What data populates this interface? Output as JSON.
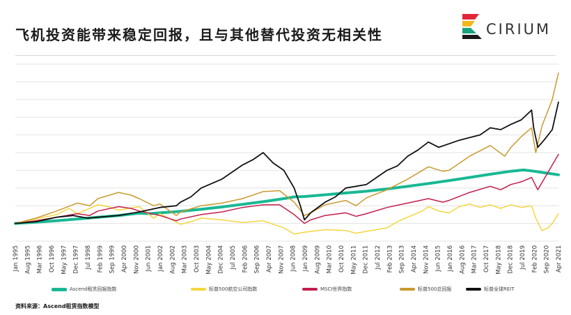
{
  "title": "飞机投资能带来稳定回报，且与其他替代投资无相关性",
  "logo": {
    "text": "CIRIUM",
    "colors": [
      "#e2263a",
      "#f3b61c",
      "#19a37e",
      "#1a1a1a"
    ]
  },
  "source": "资料来源：Ascend租赁指数模型",
  "chart_data": {
    "type": "line",
    "title": "",
    "xlabel": "",
    "ylabel": "",
    "grid": true,
    "legend_position": "bottom",
    "ylim": [
      0,
      10
    ],
    "xlim": [
      1995.0,
      2021.3
    ],
    "x_tick_labels": [
      "Jan 1995",
      "Aug 1995",
      "Mar 1996",
      "Oct 1996",
      "May 1997",
      "Dec 1997",
      "Jul 1998",
      "Feb 1999",
      "Sep 1999",
      "Apr 2000",
      "Nov 2000",
      "Jun 2001",
      "Jan 2002",
      "Aug 2002",
      "Mar 2003",
      "Oct 2003",
      "May 2004",
      "Dec 2004",
      "Jul 2005",
      "Feb 2006",
      "Sep 2006",
      "Apr 2007",
      "Nov 2007",
      "Jun 2008",
      "Jan 2009",
      "Aug 2009",
      "Mar 2010",
      "Oct 2010",
      "May 2011",
      "Dec 2011",
      "Jul 2012",
      "Feb 2013",
      "Sep 2013",
      "Apr 2014",
      "Nov 2014",
      "Jun 2015",
      "Jan 2016",
      "Aug 2016",
      "Mar 2017",
      "Oct 2017",
      "May 2018",
      "Dec 2018",
      "Jul 2019",
      "Feb 2020",
      "Sep 2020",
      "Apr 2021"
    ],
    "series": [
      {
        "name": "Ascend租赁回报指数",
        "color": "#19b894",
        "width": 4,
        "x": [
          1995.0,
          1996.0,
          1997.0,
          1998.0,
          1999.0,
          2000.0,
          2001.0,
          2001.5,
          2002.0,
          2003.0,
          2004.0,
          2005.0,
          2006.0,
          2007.0,
          2008.0,
          2008.5,
          2009.0,
          2010.0,
          2011.0,
          2012.0,
          2013.0,
          2014.0,
          2015.0,
          2016.0,
          2017.0,
          2018.0,
          2019.0,
          2019.6,
          2020.0,
          2020.5,
          2021.0,
          2021.3
        ],
        "y": [
          1.0,
          1.07,
          1.15,
          1.25,
          1.35,
          1.45,
          1.58,
          1.55,
          1.6,
          1.68,
          1.8,
          1.93,
          2.08,
          2.23,
          2.4,
          2.5,
          2.52,
          2.62,
          2.72,
          2.82,
          2.95,
          3.1,
          3.25,
          3.42,
          3.6,
          3.78,
          3.95,
          4.02,
          3.97,
          3.88,
          3.8,
          3.75
        ]
      },
      {
        "name": "标普500航空公司指数",
        "color": "#f5d63f",
        "width": 1.5,
        "x": [
          1995.0,
          1996.0,
          1997.0,
          1997.6,
          1998.0,
          1998.5,
          1999.0,
          1999.5,
          2000.0,
          2000.5,
          2001.0,
          2001.7,
          2002.0,
          2003.0,
          2003.5,
          2004.0,
          2005.0,
          2006.0,
          2007.0,
          2007.5,
          2008.0,
          2008.5,
          2009.0,
          2010.0,
          2011.0,
          2011.5,
          2012.0,
          2013.0,
          2013.5,
          2014.0,
          2014.7,
          2015.0,
          2015.5,
          2016.0,
          2016.5,
          2017.0,
          2017.5,
          2018.0,
          2018.5,
          2019.0,
          2019.5,
          2020.0,
          2020.2,
          2020.5,
          2020.8,
          2021.0,
          2021.3
        ],
        "y": [
          1.0,
          1.25,
          1.5,
          1.85,
          1.55,
          1.8,
          2.05,
          1.95,
          1.75,
          1.85,
          1.95,
          1.3,
          1.55,
          0.95,
          1.1,
          1.3,
          1.2,
          1.05,
          1.15,
          0.95,
          0.75,
          0.4,
          0.5,
          0.65,
          0.6,
          0.45,
          0.55,
          0.75,
          1.1,
          1.35,
          1.7,
          1.95,
          1.7,
          1.6,
          1.95,
          2.1,
          1.9,
          2.05,
          1.85,
          2.05,
          1.9,
          2.0,
          1.3,
          0.6,
          0.75,
          1.0,
          1.55
        ]
      },
      {
        "name": "MSCI世界指数",
        "color": "#c21d4c",
        "width": 1.5,
        "x": [
          1995.0,
          1996.0,
          1997.0,
          1998.0,
          1998.6,
          1999.0,
          2000.0,
          2000.6,
          2001.0,
          2002.0,
          2002.8,
          2003.0,
          2004.0,
          2005.0,
          2006.0,
          2007.0,
          2007.8,
          2008.5,
          2009.0,
          2009.3,
          2010.0,
          2011.0,
          2011.5,
          2012.0,
          2013.0,
          2014.0,
          2015.0,
          2015.7,
          2016.0,
          2017.0,
          2018.0,
          2018.5,
          2019.0,
          2019.5,
          2020.0,
          2020.3,
          2020.6,
          2021.0,
          2021.3
        ],
        "y": [
          1.0,
          1.15,
          1.35,
          1.55,
          1.45,
          1.7,
          1.95,
          1.85,
          1.7,
          1.45,
          1.15,
          1.25,
          1.5,
          1.65,
          1.9,
          2.05,
          2.05,
          1.5,
          1.0,
          1.2,
          1.45,
          1.6,
          1.4,
          1.55,
          1.9,
          2.15,
          2.4,
          2.2,
          2.3,
          2.75,
          3.1,
          2.9,
          3.2,
          3.35,
          3.6,
          2.9,
          3.5,
          4.3,
          4.9
        ]
      },
      {
        "name": "标普500总回报",
        "color": "#c99a2e",
        "width": 1.5,
        "x": [
          1995.0,
          1996.0,
          1997.0,
          1998.0,
          1998.6,
          1999.0,
          2000.0,
          2000.6,
          2001.0,
          2001.7,
          2002.0,
          2002.8,
          2003.0,
          2004.0,
          2005.0,
          2006.0,
          2007.0,
          2007.8,
          2008.5,
          2009.0,
          2009.3,
          2010.0,
          2011.0,
          2011.5,
          2012.0,
          2013.0,
          2014.0,
          2015.0,
          2015.7,
          2016.0,
          2017.0,
          2018.0,
          2018.7,
          2019.0,
          2019.5,
          2020.0,
          2020.2,
          2020.5,
          2021.0,
          2021.3
        ],
        "y": [
          1.0,
          1.3,
          1.7,
          2.15,
          2.0,
          2.4,
          2.75,
          2.6,
          2.4,
          2.0,
          2.1,
          1.45,
          1.65,
          2.0,
          2.15,
          2.4,
          2.8,
          2.85,
          2.2,
          1.45,
          1.6,
          2.05,
          2.3,
          2.0,
          2.45,
          2.9,
          3.5,
          4.2,
          3.95,
          4.0,
          4.8,
          5.4,
          4.8,
          5.3,
          5.9,
          6.4,
          5.0,
          6.5,
          8.0,
          9.5
        ]
      },
      {
        "name": "标普全球REIT",
        "color": "#111111",
        "width": 1.8,
        "x": [
          1995.0,
          1996.0,
          1997.0,
          1997.8,
          1998.5,
          1999.0,
          2000.0,
          2000.5,
          2001.0,
          2002.0,
          2002.8,
          2003.0,
          2003.5,
          2004.0,
          2005.0,
          2006.0,
          2006.5,
          2007.0,
          2007.5,
          2008.0,
          2008.5,
          2008.8,
          2009.0,
          2009.3,
          2010.0,
          2010.5,
          2011.0,
          2011.5,
          2012.0,
          2013.0,
          2013.5,
          2014.0,
          2014.5,
          2015.0,
          2015.5,
          2016.0,
          2016.5,
          2017.0,
          2017.5,
          2018.0,
          2018.5,
          2019.0,
          2019.5,
          2020.0,
          2020.1,
          2020.3,
          2020.6,
          2021.0,
          2021.3
        ],
        "y": [
          1.0,
          1.1,
          1.35,
          1.45,
          1.3,
          1.35,
          1.45,
          1.55,
          1.65,
          1.9,
          2.0,
          2.2,
          2.5,
          3.0,
          3.5,
          4.3,
          4.6,
          5.0,
          4.4,
          4.0,
          3.0,
          2.0,
          1.2,
          1.6,
          2.2,
          2.5,
          3.0,
          3.1,
          3.2,
          4.0,
          4.25,
          4.8,
          5.15,
          5.6,
          5.3,
          5.5,
          5.7,
          5.85,
          6.0,
          6.4,
          6.3,
          6.6,
          6.85,
          7.4,
          6.4,
          5.3,
          5.7,
          6.3,
          7.85
        ]
      }
    ]
  }
}
